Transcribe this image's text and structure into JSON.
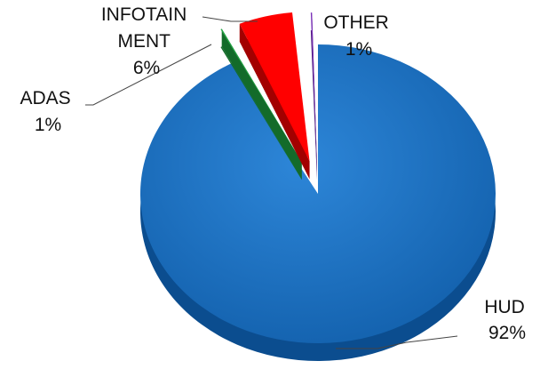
{
  "chart_data": {
    "type": "pie",
    "title": "",
    "categories": [
      "HUD",
      "ADAS",
      "INFOTAINMENT",
      "OTHER"
    ],
    "values": [
      92,
      1,
      6,
      1
    ],
    "labels": [
      {
        "lines": [
          "HUD",
          "92%"
        ]
      },
      {
        "lines": [
          "ADAS",
          "1%"
        ]
      },
      {
        "lines": [
          "INFOTAIN",
          "MENT",
          "6%"
        ]
      },
      {
        "lines": [
          "OTHER",
          "1%"
        ]
      }
    ],
    "colors": {
      "HUD": "#1f6fc0",
      "ADAS": "#24a845",
      "INFOTAINMENT": "#ff0000",
      "OTHER": "#7a30b8"
    },
    "style": "3d-exploded",
    "legend": "none"
  }
}
